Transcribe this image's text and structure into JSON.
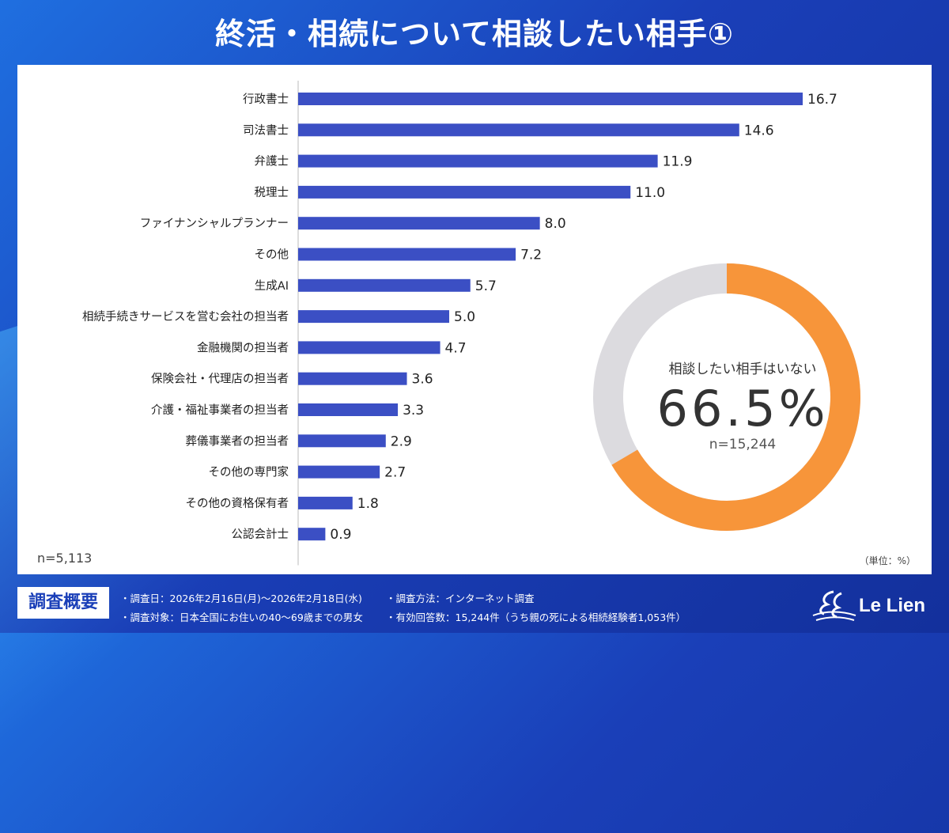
{
  "title": "終活・相続について相談したい相手①",
  "chart_data": {
    "type": "bar",
    "orientation": "horizontal",
    "categories": [
      "行政書士",
      "司法書士",
      "弁護士",
      "税理士",
      "ファイナンシャルプランナー",
      "その他",
      "生成AI",
      "相続手続きサービスを営む会社の担当者",
      "金融機関の担当者",
      "保険会社・代理店の担当者",
      "介護・福祉事業者の担当者",
      "葬儀事業者の担当者",
      "その他の専門家",
      "その他の資格保有者",
      "公認会計士"
    ],
    "values": [
      16.7,
      14.6,
      11.9,
      11.0,
      8.0,
      7.2,
      5.7,
      5.0,
      4.7,
      3.6,
      3.3,
      2.9,
      2.7,
      1.8,
      0.9
    ],
    "value_labels": [
      "16.7",
      "14.6",
      "11.9",
      "11.0",
      "8.0",
      "7.2",
      "5.7",
      "5.0",
      "4.7",
      "3.6",
      "3.3",
      "2.9",
      "2.7",
      "1.8",
      "0.9"
    ],
    "xlim": [
      0,
      18
    ],
    "bar_color": "#3b4fc4",
    "n_label": "n=5,113",
    "unit_label": "（単位：%）",
    "donut": {
      "caption": "相談したい相手はいない",
      "value": 66.5,
      "value_label": "66.5%",
      "n_label": "n=15,244",
      "accent_color": "#f7953a",
      "rest_color": "#dcdbdf"
    }
  },
  "footer": {
    "badge": "調査概要",
    "date": "・調査日：2026年2月16日(月)～2026年2月18日(水)",
    "target": "・調査対象：日本全国にお住いの40～69歳までの男女",
    "method": "・調査方法：インターネット調査",
    "responses": "・有効回答数：15,244件（うち親の死による相続経験者1,053件）",
    "logo_text": "Le Lien"
  }
}
